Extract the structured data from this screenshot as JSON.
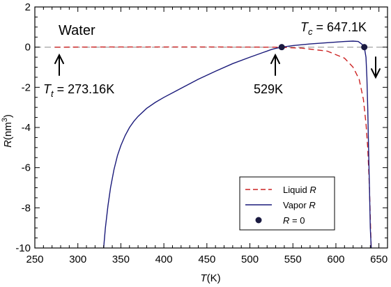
{
  "chart_data": {
    "type": "line",
    "title": "",
    "xlabel": {
      "var": "T",
      "unit": "(K)"
    },
    "ylabel": {
      "var": "R",
      "unit": "(nm",
      "sup": "3",
      "close": ")"
    },
    "xlim": [
      250,
      660
    ],
    "ylim": [
      -10,
      2
    ],
    "xticks": [
      250,
      300,
      350,
      400,
      450,
      500,
      550,
      600,
      650
    ],
    "yticks": [
      2,
      0,
      -2,
      -4,
      -6,
      -8,
      -10
    ],
    "ytick_labels": [
      "2",
      "0",
      "-2",
      "-4",
      "-6",
      "-8",
      "-10"
    ],
    "zero_line": {
      "y": 0,
      "style": "dashed",
      "color": "#aaaaaa"
    },
    "series": [
      {
        "name": "Liquid R",
        "legend_label": {
          "text": "Liquid ",
          "var": "R"
        },
        "color": "#cc2222",
        "style": "dashed",
        "x": [
          273.16,
          350,
          450,
          529,
          560,
          590,
          610,
          620,
          627,
          632,
          635,
          637,
          639,
          640,
          641
        ],
        "y": [
          0.0,
          0.01,
          0.01,
          0.0,
          -0.05,
          -0.2,
          -0.55,
          -1.0,
          -1.6,
          -2.6,
          -3.8,
          -5.0,
          -7.0,
          -8.5,
          -10
        ]
      },
      {
        "name": "Vapor R",
        "legend_label": {
          "text": "Vapor ",
          "var": "R"
        },
        "color": "#1a1a7a",
        "style": "solid",
        "x": [
          330,
          332,
          335,
          338,
          342,
          346,
          350,
          355,
          360,
          365,
          370,
          380,
          390,
          400,
          420,
          440,
          460,
          480,
          500,
          515,
          525,
          530,
          537,
          550,
          570,
          590,
          610,
          620,
          626,
          630,
          633,
          635,
          636,
          637,
          638,
          639,
          640,
          641
        ],
        "y": [
          -10,
          -9.0,
          -7.9,
          -7.0,
          -6.1,
          -5.4,
          -4.9,
          -4.4,
          -4.0,
          -3.7,
          -3.45,
          -3.05,
          -2.75,
          -2.5,
          -2.05,
          -1.6,
          -1.2,
          -0.82,
          -0.5,
          -0.27,
          -0.12,
          -0.06,
          0.0,
          0.08,
          0.16,
          0.22,
          0.28,
          0.3,
          0.28,
          0.15,
          0.0,
          -0.5,
          -1.5,
          -3.0,
          -5.0,
          -7.0,
          -9.0,
          -10
        ]
      }
    ],
    "points": {
      "name": "R = 0",
      "legend_label": {
        "var": "R",
        "text": " = 0"
      },
      "color": "#1a1a40",
      "x": [
        537,
        633
      ],
      "y": [
        0,
        0
      ]
    },
    "annotations": [
      {
        "id": "water",
        "text": "Water"
      },
      {
        "id": "tc",
        "var": "T",
        "sub": "c",
        "text": " = 647.1K"
      },
      {
        "id": "tt",
        "var": "T",
        "sub": "t",
        "text": " = 273.16K"
      },
      {
        "id": "t529",
        "text": "529K"
      }
    ],
    "legend_position": "bottom-right",
    "grid": false
  }
}
